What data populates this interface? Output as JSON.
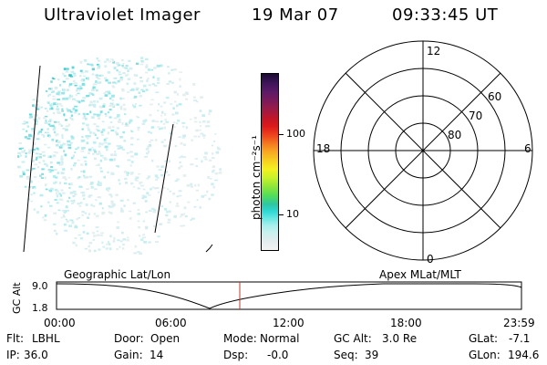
{
  "header": {
    "instrument": "Ultraviolet Imager",
    "date": "19 Mar 07",
    "time": "09:33:45 UT"
  },
  "colorbar": {
    "unit_label": "photon cm⁻²s⁻¹",
    "ticks": [
      {
        "label": "100",
        "value": 100
      },
      {
        "label": "10",
        "value": 10
      }
    ],
    "colors": [
      "#f2f2f2",
      "#2ed8d4",
      "#8fe63a",
      "#f4f01f",
      "#f57d20",
      "#de1a1a",
      "#1c0a33"
    ]
  },
  "polar_plot": {
    "mlt_labels": {
      "top": "12",
      "left": "18",
      "right": "6",
      "bottom": "0"
    },
    "latitude_labels": [
      "60",
      "70",
      "80"
    ]
  },
  "altitude_plot": {
    "left_title": "Geographic Lat/Lon",
    "right_title": "Apex MLat/MLT",
    "axis_label": "GC Alt",
    "y_ticks": [
      "9.0",
      "1.8"
    ],
    "x_ticks": [
      "00:00",
      "06:00",
      "12:00",
      "18:00",
      "23:59"
    ],
    "cursor_color": "#c0392b"
  },
  "status": {
    "row1": [
      {
        "key": "Flt:",
        "value": "LBHL"
      },
      {
        "key": "Door:",
        "value": "Open"
      },
      {
        "key": "Mode:",
        "value": "Normal"
      },
      {
        "key": "GC Alt:",
        "value": "3.0 Re"
      },
      {
        "key": "GLat:",
        "value": "-7.1"
      }
    ],
    "row2": [
      {
        "key": "IP:",
        "value": "36.0"
      },
      {
        "key": "Gain:",
        "value": "14"
      },
      {
        "key": "Dsp:",
        "value": "-0.0"
      },
      {
        "key": "Seq:",
        "value": "39"
      },
      {
        "key": "GLon:",
        "value": "194.6"
      }
    ]
  }
}
